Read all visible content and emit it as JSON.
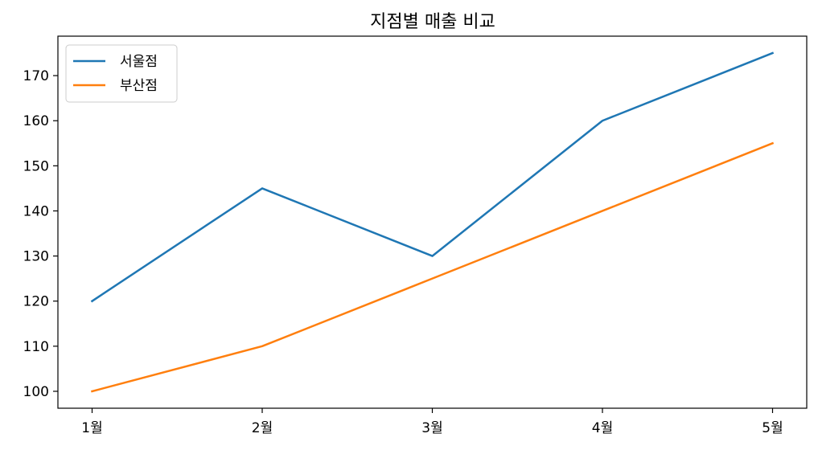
{
  "chart_data": {
    "type": "line",
    "title": "지점별 매출 비교",
    "xlabel": "",
    "ylabel": "",
    "categories": [
      "1월",
      "2월",
      "3월",
      "4월",
      "5월"
    ],
    "series": [
      {
        "name": "서울점",
        "color": "#1f77b4",
        "values": [
          120,
          145,
          130,
          160,
          175
        ]
      },
      {
        "name": "부산점",
        "color": "#ff7f0e",
        "values": [
          100,
          110,
          125,
          140,
          155
        ]
      }
    ],
    "ylim": [
      96.25,
      178.75
    ],
    "yticks": [
      100,
      110,
      120,
      130,
      140,
      150,
      160,
      170
    ],
    "grid": false,
    "legend_position": "upper left"
  }
}
